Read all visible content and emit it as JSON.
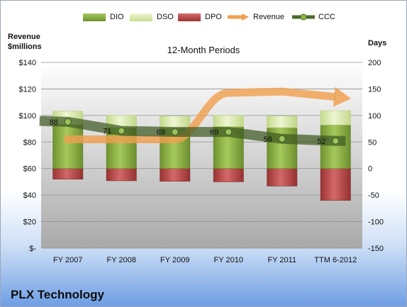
{
  "legend": {
    "dio": "DIO",
    "dso": "DSO",
    "dpo": "DPO",
    "revenue": "Revenue",
    "ccc": "CCC"
  },
  "axes": {
    "left_title_line1": "Revenue",
    "left_title_line2": "$millions",
    "right_title": "Days"
  },
  "subtitle": "12-Month Periods",
  "company": "PLX Technology",
  "colors": {
    "dio": "#8fb53f",
    "dso": "#d8e8a8",
    "dpo": "#b94a4a",
    "revenue": "#f0a050",
    "ccc": "#4e6b2c"
  },
  "chart_data": {
    "type": "bar",
    "categories": [
      "FY 2007",
      "FY 2008",
      "FY 2009",
      "FY 2010",
      "FY 2011",
      "TTM 6-2012"
    ],
    "series": [
      {
        "name": "DIO",
        "axis": "right",
        "values": [
          83,
          77,
          76,
          79,
          77,
          82
        ]
      },
      {
        "name": "DSO",
        "axis": "right",
        "values": [
          25,
          23,
          23,
          21,
          22,
          27
        ]
      },
      {
        "name": "DPO",
        "axis": "right",
        "values": [
          -20,
          -23,
          -24,
          -25,
          -33,
          -60
        ]
      },
      {
        "name": "Revenue",
        "axis": "left",
        "type": "line",
        "values": [
          82,
          81,
          82,
          117,
          118,
          114
        ]
      },
      {
        "name": "CCC",
        "axis": "right",
        "type": "line",
        "values": [
          88,
          71,
          69,
          69,
          56,
          52
        ]
      }
    ],
    "ccc_labels": [
      "88",
      "71",
      "69",
      "69",
      "56",
      "52"
    ],
    "left_axis": {
      "min": 0,
      "max": 140,
      "step": 20,
      "labels": [
        "$-",
        "$20",
        "$40",
        "$60",
        "$80",
        "$100",
        "$120",
        "$140"
      ]
    },
    "right_axis": {
      "min": -150,
      "max": 200,
      "step": 50,
      "labels": [
        "-150",
        "-100",
        "-50",
        "0",
        "50",
        "100",
        "150",
        "200"
      ]
    }
  }
}
